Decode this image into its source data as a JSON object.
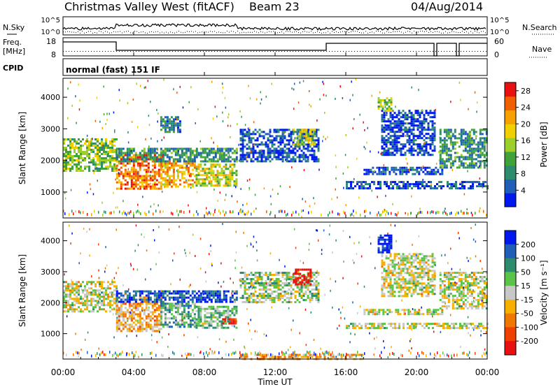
{
  "header": {
    "title": "Christmas Valley West (fitACF)",
    "beam": "Beam 23",
    "date": "04/Aug/2014"
  },
  "status_panels": {
    "nsky_label": "N.Sky",
    "nsearch_label": "N.Search",
    "noise_ticks": [
      "10^5",
      "10^0"
    ],
    "freq_label": "Freq.",
    "freq_unit": "[MHz]",
    "freq_ticks": [
      "18",
      "8"
    ],
    "nave_label": "Nave",
    "nave_ticks": [
      "60",
      "0"
    ],
    "cpid_label": "CPID",
    "cpid_text": "normal (fast) 151 IF"
  },
  "chart_data": [
    {
      "type": "heatmap",
      "name": "power",
      "ylabel": "Slant Range [km]",
      "xlabel": "Time UT",
      "x_ticks": [
        "00:00",
        "04:00",
        "08:00",
        "12:00",
        "16:00",
        "20:00",
        "00:00"
      ],
      "x_range_hours": [
        0,
        24
      ],
      "y_ticks": [
        1000,
        2000,
        3000,
        4000
      ],
      "y_range_km": [
        180,
        4600
      ],
      "colorbar": {
        "label": "Power [dB]",
        "ticks": [
          4,
          8,
          12,
          16,
          20,
          24,
          28
        ],
        "range": [
          0,
          30
        ],
        "colors": [
          "#0018f0",
          "#1f5fb8",
          "#2e8c6e",
          "#3fa33a",
          "#9ccf2a",
          "#f0d000",
          "#f7a000",
          "#f06000",
          "#e81010"
        ]
      },
      "bands": [
        {
          "t0": 0.0,
          "t1": 3.0,
          "r0": 1700,
          "r1": 2700,
          "level": 0.45
        },
        {
          "t0": 3.0,
          "t1": 5.5,
          "r0": 1100,
          "r1": 2200,
          "level": 0.8
        },
        {
          "t0": 5.5,
          "t1": 7.5,
          "r0": 1200,
          "r1": 2000,
          "level": 0.7
        },
        {
          "t0": 7.5,
          "t1": 9.8,
          "r0": 1200,
          "r1": 1900,
          "level": 0.55
        },
        {
          "t0": 3.0,
          "t1": 9.8,
          "r0": 2000,
          "r1": 2400,
          "level": 0.3
        },
        {
          "t0": 5.5,
          "t1": 6.6,
          "r0": 2900,
          "r1": 3400,
          "level": 0.25
        },
        {
          "t0": 10.0,
          "t1": 14.5,
          "r0": 2000,
          "r1": 3000,
          "level": 0.15
        },
        {
          "t0": 13.0,
          "t1": 14.3,
          "r0": 2500,
          "r1": 3000,
          "level": 0.55
        },
        {
          "t0": 16.0,
          "t1": 24.0,
          "r0": 1150,
          "r1": 1350,
          "level": 0.15
        },
        {
          "t0": 17.0,
          "t1": 21.5,
          "r0": 1600,
          "r1": 1800,
          "level": 0.15
        },
        {
          "t0": 18.0,
          "t1": 21.0,
          "r0": 2200,
          "r1": 3600,
          "level": 0.12
        },
        {
          "t0": 17.8,
          "t1": 18.6,
          "r0": 3600,
          "r1": 4000,
          "level": 0.5
        },
        {
          "t0": 21.3,
          "t1": 24.0,
          "r0": 1800,
          "r1": 3000,
          "level": 0.3
        }
      ]
    },
    {
      "type": "heatmap",
      "name": "velocity",
      "ylabel": "Slant Range [km]",
      "xlabel": "Time UT",
      "x_ticks": [
        "00:00",
        "04:00",
        "08:00",
        "12:00",
        "16:00",
        "20:00",
        "00:00"
      ],
      "x_range_hours": [
        0,
        24
      ],
      "y_ticks": [
        1000,
        2000,
        3000,
        4000
      ],
      "y_range_km": [
        180,
        4600
      ],
      "colorbar": {
        "label": "Velocity [m s⁻¹]",
        "ticks": [
          "200",
          "100",
          "50",
          "15",
          "-15",
          "-50",
          "-100",
          "-200"
        ],
        "colors": [
          "#0018f0",
          "#1f5fb8",
          "#2e8c6e",
          "#5bc24a",
          "#c8c8c8",
          "#f7b000",
          "#f07800",
          "#f04000",
          "#e81010"
        ]
      },
      "bands": [
        {
          "t0": 0.0,
          "t1": 3.0,
          "r0": 1700,
          "r1": 2700,
          "level": 0.5
        },
        {
          "t0": 3.0,
          "t1": 5.5,
          "r0": 1100,
          "r1": 2200,
          "level": 0.62
        },
        {
          "t0": 5.5,
          "t1": 7.5,
          "r0": 1200,
          "r1": 2000,
          "level": 0.35
        },
        {
          "t0": 7.5,
          "t1": 9.8,
          "r0": 1200,
          "r1": 1900,
          "level": 0.4
        },
        {
          "t0": 9.0,
          "t1": 9.8,
          "r0": 1300,
          "r1": 1500,
          "level": 0.95
        },
        {
          "t0": 3.0,
          "t1": 9.8,
          "r0": 2000,
          "r1": 2400,
          "level": 0.15
        },
        {
          "t0": 10.0,
          "t1": 14.5,
          "r0": 2000,
          "r1": 3000,
          "level": 0.45
        },
        {
          "t0": 13.0,
          "t1": 14.0,
          "r0": 2600,
          "r1": 3100,
          "level": 0.95
        },
        {
          "t0": 16.0,
          "t1": 24.0,
          "r0": 1150,
          "r1": 1350,
          "level": 0.5
        },
        {
          "t0": 17.0,
          "t1": 21.5,
          "r0": 1600,
          "r1": 1800,
          "level": 0.5
        },
        {
          "t0": 18.0,
          "t1": 21.0,
          "r0": 2200,
          "r1": 3600,
          "level": 0.5
        },
        {
          "t0": 17.8,
          "t1": 18.6,
          "r0": 3600,
          "r1": 4200,
          "level": 0.05
        },
        {
          "t0": 21.3,
          "t1": 24.0,
          "r0": 1800,
          "r1": 3000,
          "level": 0.5
        },
        {
          "t0": 10.0,
          "t1": 17.0,
          "r0": 180,
          "r1": 350,
          "level": 0.62
        }
      ]
    }
  ]
}
